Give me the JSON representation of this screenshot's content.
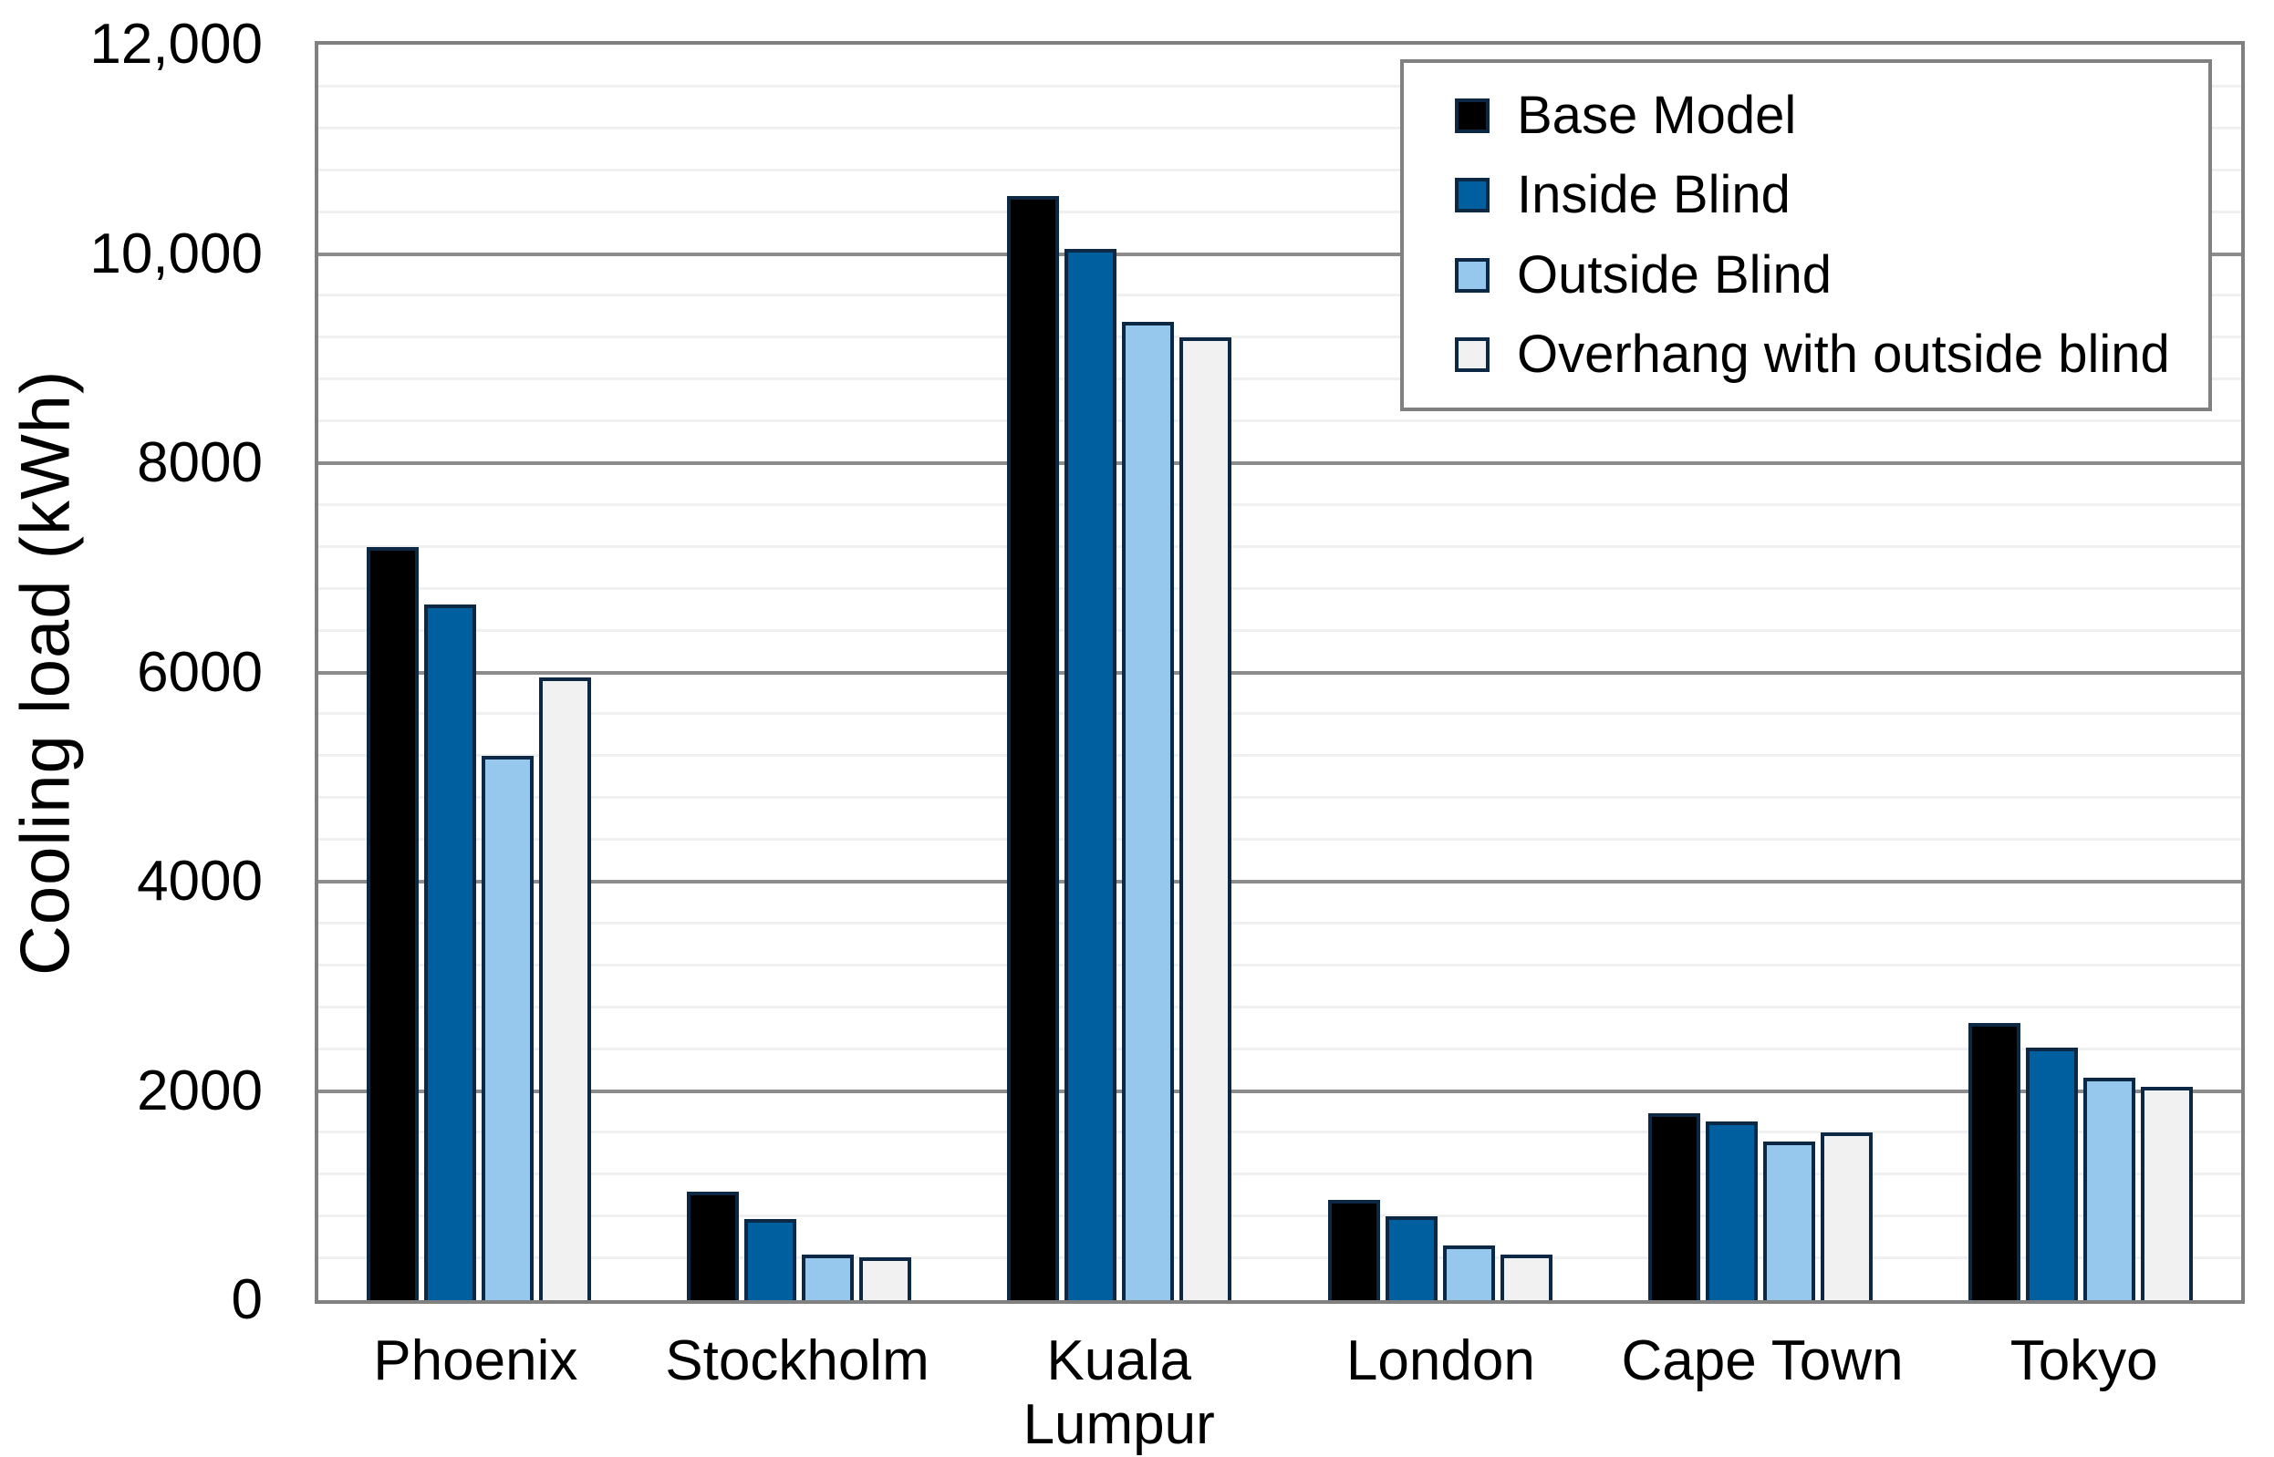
{
  "chart_data": {
    "type": "bar",
    "title": "",
    "xlabel": "",
    "ylabel": "Cooling load (kWh)",
    "ylim": [
      0,
      12000
    ],
    "y_major_step": 2000,
    "y_minor_step": 400,
    "grid": "horizontal major and minor gridlines on",
    "legend_position": "top-right inside plot",
    "y_ticks": [
      {
        "value": 0,
        "label": "0"
      },
      {
        "value": 2000,
        "label": "2000"
      },
      {
        "value": 4000,
        "label": "4000"
      },
      {
        "value": 6000,
        "label": "6000"
      },
      {
        "value": 8000,
        "label": "8000"
      },
      {
        "value": 10000,
        "label": "10,000"
      },
      {
        "value": 12000,
        "label": "12,000"
      }
    ],
    "categories": [
      "Phoenix",
      "Stockholm",
      "Kuala Lumpur",
      "London",
      "Cape Town",
      "Tokyo"
    ],
    "series": [
      {
        "name": "Base Model",
        "color": "#000000",
        "values": [
          7200,
          1040,
          10550,
          960,
          1790,
          2650
        ]
      },
      {
        "name": "Inside Blind",
        "color": "#00609F",
        "values": [
          6650,
          780,
          10050,
          800,
          1710,
          2410
        ]
      },
      {
        "name": "Outside Blind",
        "color": "#95C8EC",
        "values": [
          5200,
          440,
          9350,
          520,
          1520,
          2130
        ]
      },
      {
        "name": "Overhang with outside blind",
        "color": "#F1F1F1",
        "values": [
          5950,
          410,
          9200,
          440,
          1600,
          2040
        ]
      }
    ],
    "colors": {
      "bar_border": "#0D2844",
      "major_gridline": "#8C8C8C",
      "minor_gridline": "#F0F0F0",
      "plot_border": "#808080",
      "legend_border": "#808080",
      "background": "#FFFFFF",
      "text": "#000000"
    }
  }
}
